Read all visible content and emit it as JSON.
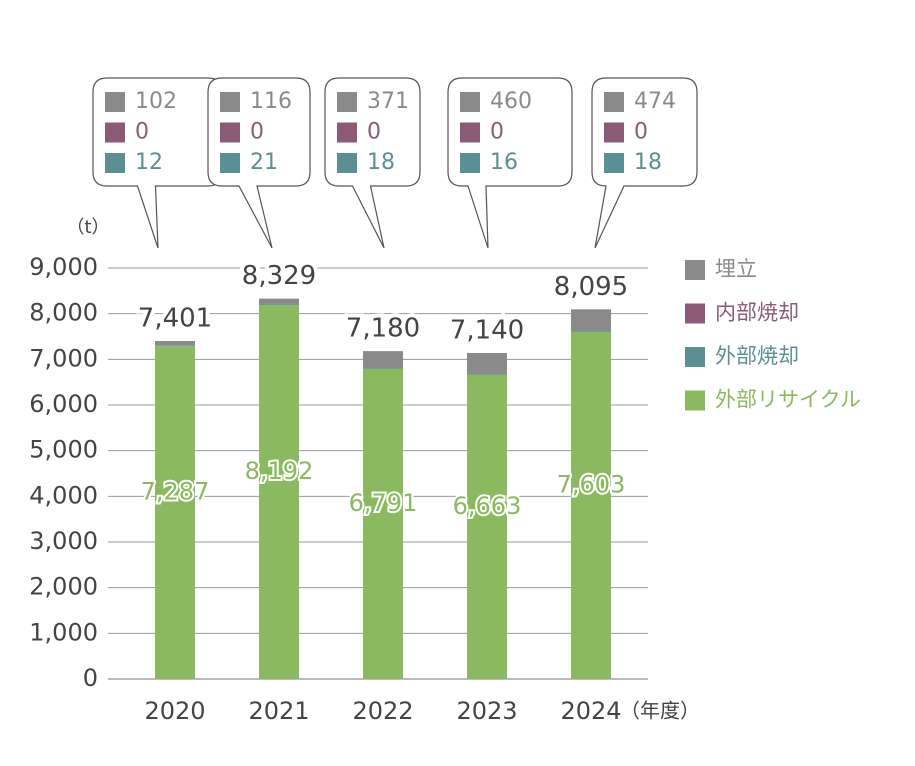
{
  "chart_data": {
    "type": "stacked_bar",
    "categories": [
      "2020",
      "2021",
      "2022",
      "2023",
      "2024"
    ],
    "x_unit": "（年度）",
    "y_unit": "（t）",
    "ylim": [
      0,
      9000
    ],
    "yticks": [
      0,
      {
        "value": 1000,
        "label": "1,000"
      },
      {
        "value": 2000,
        "label": "2,000"
      },
      {
        "value": 3000,
        "label": "3,000"
      },
      {
        "value": 4000,
        "label": "4,000"
      },
      {
        "value": 5000,
        "label": "5,000"
      },
      {
        "value": 6000,
        "label": "6,000"
      },
      {
        "value": 7000,
        "label": "7,000"
      },
      {
        "value": 8000,
        "label": "8,000"
      },
      {
        "value": 9000,
        "label": "9,000"
      }
    ],
    "grid": true,
    "series": [
      {
        "name": "埋立",
        "color": "#8a8a8a",
        "values": [
          102,
          116,
          371,
          460,
          474
        ]
      },
      {
        "name": "内部焼却",
        "color": "#8b5a76",
        "values": [
          0,
          0,
          0,
          0,
          0
        ]
      },
      {
        "name": "外部焼却",
        "color": "#5b8f94",
        "values": [
          12,
          21,
          18,
          16,
          18
        ]
      },
      {
        "name": "外部リサイクル",
        "color": "#8ab95f",
        "values": [
          7287,
          8192,
          6791,
          6663,
          7603
        ],
        "value_labels": [
          "7,287",
          "8,192",
          "6,791",
          "6,663",
          "7,603"
        ]
      }
    ],
    "totals": [
      7401,
      8329,
      7180,
      7140,
      8095
    ],
    "total_labels": [
      "7,401",
      "8,329",
      "7,180",
      "7,140",
      "8,095"
    ]
  }
}
